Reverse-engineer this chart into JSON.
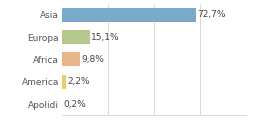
{
  "categories": [
    "Asia",
    "Europa",
    "Africa",
    "America",
    "Apolidi"
  ],
  "values": [
    72.7,
    15.1,
    9.8,
    2.2,
    0.2
  ],
  "labels": [
    "72,7%",
    "15,1%",
    "9,8%",
    "2,2%",
    "0,2%"
  ],
  "colors": [
    "#7aaac8",
    "#b5c98e",
    "#e8b48a",
    "#e8d060",
    "#cccccc"
  ],
  "background_color": "#ffffff",
  "xlim": [
    0,
    100
  ],
  "bar_height": 0.62,
  "label_fontsize": 6.5,
  "tick_fontsize": 6.5,
  "gridlines": [
    25,
    50,
    75,
    100
  ],
  "grid_color": "#cccccc"
}
